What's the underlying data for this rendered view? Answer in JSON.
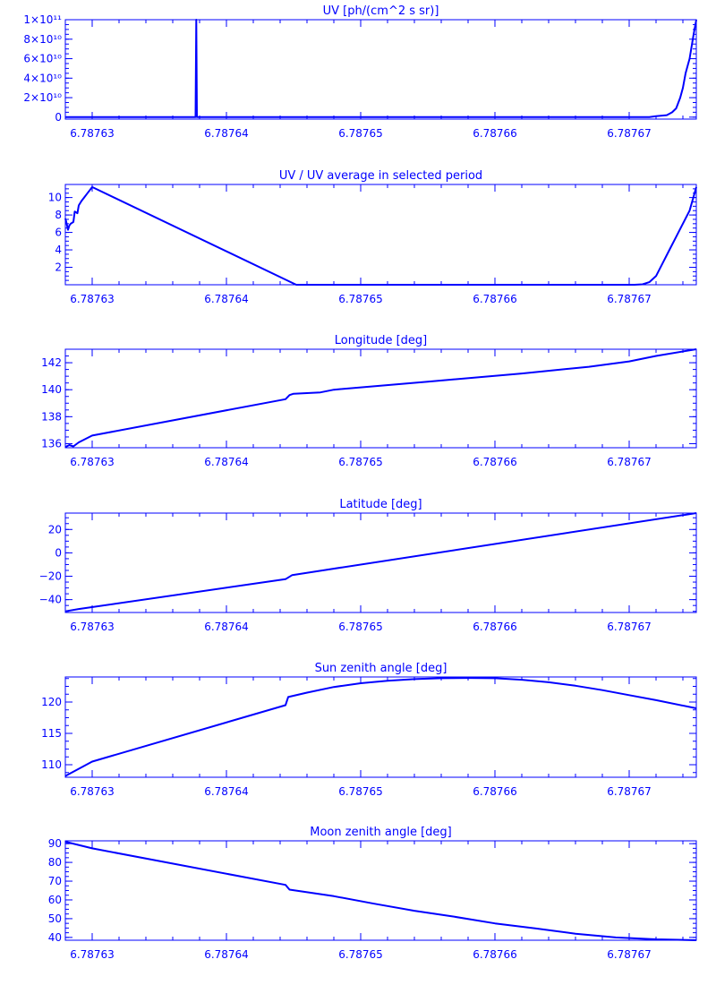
{
  "colors": {
    "axis": "#0000ff",
    "line": "#0000ff",
    "background": "#ffffff"
  },
  "shared_x": {
    "xlim": [
      6.787628,
      6.787675
    ],
    "ticks": [
      6.78763,
      6.78764,
      6.78765,
      6.78766,
      6.78767
    ],
    "tick_labels": [
      "6.78763",
      "6.78764",
      "6.78765",
      "6.78766",
      "6.78767"
    ]
  },
  "chart_data": [
    {
      "type": "line",
      "title": "UV [ph/(cm^2 s sr)]",
      "ylim": [
        -2000000000.0,
        100000000000.0
      ],
      "yticks": [
        0,
        20000000000.0,
        40000000000.0,
        60000000000.0,
        80000000000.0,
        100000000000.0
      ],
      "ytick_labels": [
        "0",
        "2×10¹⁰",
        "4×10¹⁰",
        "6×10¹⁰",
        "8×10¹⁰",
        "1×10¹¹"
      ],
      "series": [
        {
          "x": [
            6.787628,
            6.7876377,
            6.78763775,
            6.7876378,
            6.7876704,
            6.7876715,
            6.787672,
            6.7876728,
            6.7876732,
            6.7876735,
            6.7876738,
            6.787674,
            6.7876742,
            6.7876745,
            6.7876748,
            6.7876752
          ],
          "y": [
            0,
            0,
            100000000000.0,
            0,
            0,
            100000000.0,
            1000000000.0,
            2000000000.0,
            5000000000.0,
            9000000000.0,
            20000000000.0,
            30000000000.0,
            45000000000.0,
            60000000000.0,
            85000000000.0,
            100000000000.0
          ]
        }
      ]
    },
    {
      "type": "line",
      "title": "UV / UV average in selected period",
      "ylim": [
        0,
        11.5
      ],
      "yticks": [
        2,
        4,
        6,
        8,
        10
      ],
      "ytick_labels": [
        "2",
        "4",
        "6",
        "8",
        "10"
      ],
      "series": [
        {
          "x": [
            6.787628,
            6.7876281,
            6.7876282,
            6.7876283,
            6.7876284,
            6.7876286,
            6.7876287,
            6.7876289,
            6.787629,
            6.7876292,
            6.7876294,
            6.7876296,
            6.7876298,
            6.78763,
            6.7876452,
            6.7876704,
            6.787671,
            6.7876715,
            6.787672,
            6.7876725,
            6.787673,
            6.7876735,
            6.787674,
            6.7876745,
            6.787675
          ],
          "y": [
            7.6,
            7.0,
            6.3,
            6.8,
            7.0,
            7.2,
            8.4,
            8.2,
            9.1,
            9.6,
            10.0,
            10.4,
            10.8,
            11.2,
            0.0,
            0.0,
            0.05,
            0.3,
            1.0,
            2.5,
            4.0,
            5.5,
            7.0,
            8.5,
            11.2
          ]
        }
      ]
    },
    {
      "type": "line",
      "title": "Longitude [deg]",
      "ylim": [
        135.7,
        143.0
      ],
      "yticks": [
        136,
        138,
        140,
        142
      ],
      "ytick_labels": [
        "136",
        "138",
        "140",
        "142"
      ],
      "series": [
        {
          "x": [
            6.787628,
            6.7876283,
            6.7876286,
            6.787629,
            6.78763,
            6.7876444,
            6.7876447,
            6.787645,
            6.787647,
            6.787648,
            6.787655,
            6.787662,
            6.787667,
            6.78767,
            6.787672,
            6.787675
          ],
          "y": [
            135.75,
            135.9,
            135.8,
            136.1,
            136.6,
            139.3,
            139.6,
            139.7,
            139.8,
            140.0,
            140.6,
            141.2,
            141.7,
            142.1,
            142.5,
            143.0
          ]
        }
      ]
    },
    {
      "type": "line",
      "title": "Latitude [deg]",
      "ylim": [
        -51,
        34
      ],
      "yticks": [
        -40,
        -20,
        0,
        20
      ],
      "ytick_labels": [
        "−40",
        "−20",
        "0",
        "20"
      ],
      "series": [
        {
          "x": [
            6.787628,
            6.787629,
            6.7876444,
            6.7876449,
            6.787675
          ],
          "y": [
            -50,
            -48,
            -22.5,
            -19,
            34
          ]
        }
      ]
    },
    {
      "type": "line",
      "title": "Sun zenith angle [deg]",
      "ylim": [
        108,
        124
      ],
      "yticks": [
        110,
        115,
        120
      ],
      "ytick_labels": [
        "110",
        "115",
        "120"
      ],
      "series": [
        {
          "x": [
            6.787628,
            6.78763,
            6.7876444,
            6.7876446,
            6.787646,
            6.787648,
            6.78765,
            6.787652,
            6.787654,
            6.787656,
            6.787658,
            6.78766,
            6.787662,
            6.787664,
            6.787666,
            6.787668,
            6.78767,
            6.787672,
            6.787675
          ],
          "y": [
            108.2,
            110.5,
            119.5,
            120.8,
            121.5,
            122.4,
            123.0,
            123.4,
            123.65,
            123.8,
            123.85,
            123.8,
            123.55,
            123.15,
            122.6,
            121.9,
            121.1,
            120.3,
            119.0
          ]
        }
      ]
    },
    {
      "type": "line",
      "title": "Moon zenith angle [deg]",
      "ylim": [
        38.5,
        91.5
      ],
      "yticks": [
        40,
        50,
        60,
        70,
        80,
        90
      ],
      "ytick_labels": [
        "40",
        "50",
        "60",
        "70",
        "80",
        "90"
      ],
      "series": [
        {
          "x": [
            6.787628,
            6.78763,
            6.7876444,
            6.7876447,
            6.787648,
            6.787651,
            6.787654,
            6.787657,
            6.78766,
            6.787663,
            6.787666,
            6.787669,
            6.787672,
            6.787675
          ],
          "y": [
            91.0,
            87.5,
            68.0,
            65.5,
            62.0,
            58.0,
            54.2,
            51.0,
            47.5,
            44.8,
            42.0,
            40.0,
            39.0,
            38.5
          ]
        }
      ]
    }
  ]
}
